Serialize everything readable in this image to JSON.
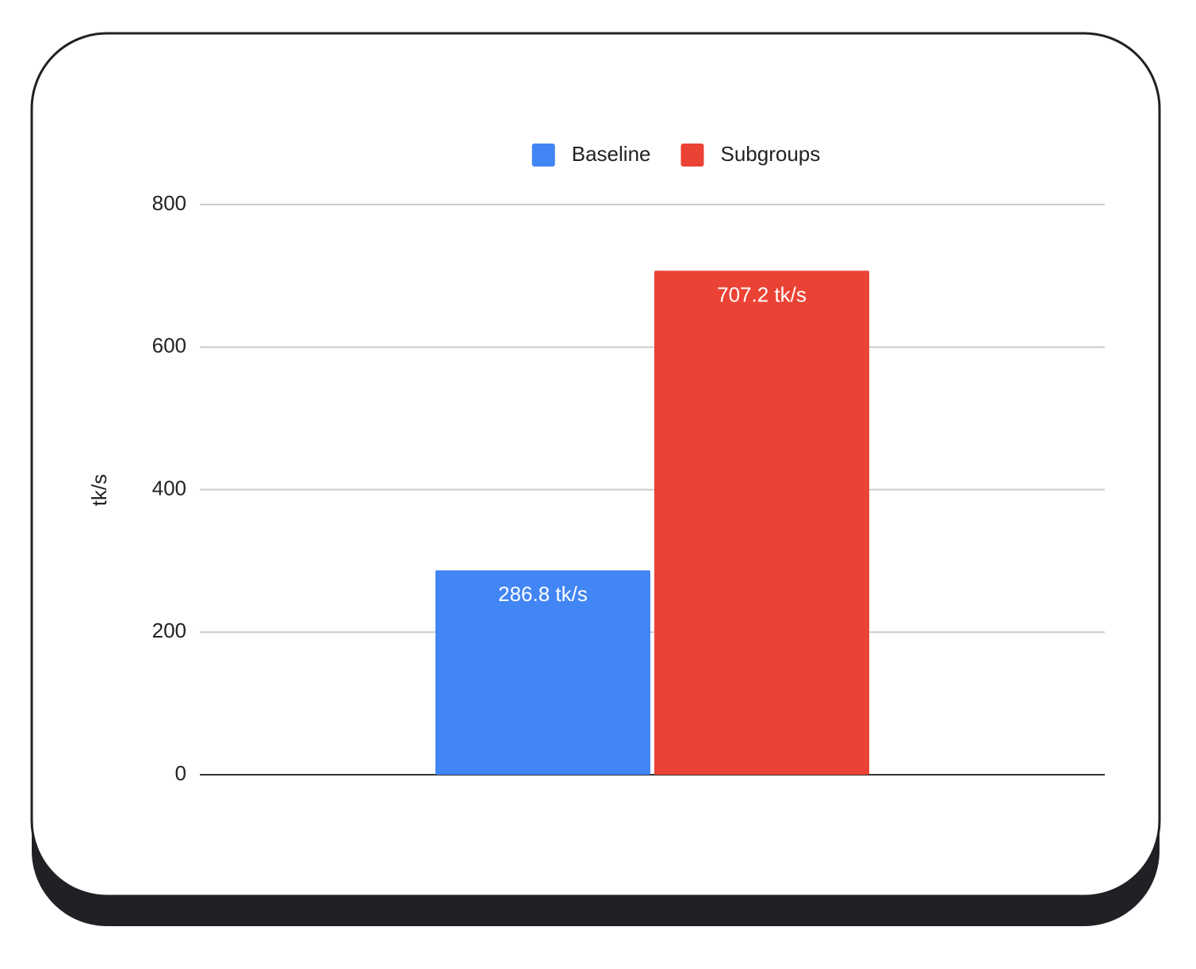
{
  "chart_data": {
    "type": "bar",
    "y_label": "tk/s",
    "categories": [
      null
    ],
    "series": [
      {
        "name": "Baseline",
        "color": "#4285f4",
        "values": [
          286.8
        ],
        "value_labels": [
          "286.8 tk/s"
        ]
      },
      {
        "name": "Subgroups",
        "color": "#ea4335",
        "values": [
          707.2
        ],
        "value_labels": [
          "707.2 tk/s"
        ]
      }
    ],
    "ylim": [
      0,
      800
    ],
    "yticks": [
      0,
      200,
      400,
      600,
      800
    ],
    "grid": true,
    "legend": "top"
  }
}
